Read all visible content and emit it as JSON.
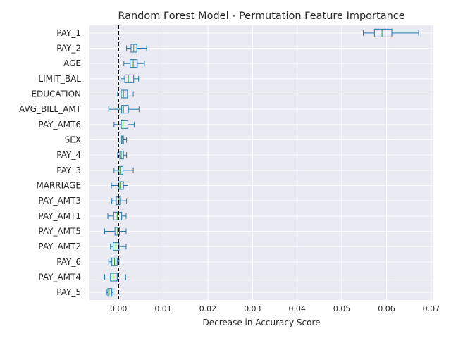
{
  "chart_data": {
    "type": "boxplot",
    "orientation": "horizontal",
    "title": "Random Forest Model - Permutation Feature Importance",
    "xlabel": "Decrease in Accuracy Score",
    "ylabel": "",
    "xlim": [
      -0.0065,
      0.0705
    ],
    "xticks": [
      0.0,
      0.01,
      0.02,
      0.03,
      0.04,
      0.05,
      0.06,
      0.07
    ],
    "xtick_labels": [
      "0.00",
      "0.01",
      "0.02",
      "0.03",
      "0.04",
      "0.05",
      "0.06",
      "0.07"
    ],
    "reference_line": {
      "x": 0.0,
      "style": "dashed",
      "color": "#000000"
    },
    "grid": true,
    "background": "#eaeaf2",
    "box_color": "#1f77b4",
    "median_color": "#2ca02c",
    "features": [
      {
        "name": "PAY_1",
        "whislo": 0.0548,
        "q1": 0.0573,
        "med": 0.059,
        "q3": 0.0612,
        "whishi": 0.0672
      },
      {
        "name": "PAY_2",
        "whislo": 0.0018,
        "q1": 0.0028,
        "med": 0.0034,
        "q3": 0.0041,
        "whishi": 0.0063
      },
      {
        "name": "AGE",
        "whislo": 0.0012,
        "q1": 0.0026,
        "med": 0.0033,
        "q3": 0.0042,
        "whishi": 0.0058
      },
      {
        "name": "LIMIT_BAL",
        "whislo": 0.0005,
        "q1": 0.0014,
        "med": 0.0022,
        "q3": 0.0034,
        "whishi": 0.0045
      },
      {
        "name": "EDUCATION",
        "whislo": -0.0002,
        "q1": 0.0006,
        "med": 0.0011,
        "q3": 0.002,
        "whishi": 0.0033
      },
      {
        "name": "AVG_BILL_AMT",
        "whislo": -0.0022,
        "q1": 0.0007,
        "med": 0.0011,
        "q3": 0.0022,
        "whishi": 0.0046
      },
      {
        "name": "PAY_AMT6",
        "whislo": -0.001,
        "q1": 0.0006,
        "med": 0.001,
        "q3": 0.0021,
        "whishi": 0.0035
      },
      {
        "name": "SEX",
        "whislo": 0.0005,
        "q1": 0.0007,
        "med": 0.0008,
        "q3": 0.0011,
        "whishi": 0.0018
      },
      {
        "name": "PAY_4",
        "whislo": -0.0002,
        "q1": 0.0003,
        "med": 0.0006,
        "q3": 0.0011,
        "whishi": 0.0018
      },
      {
        "name": "PAY_3",
        "whislo": -0.001,
        "q1": 0.0001,
        "med": 0.0004,
        "q3": 0.001,
        "whishi": 0.0033
      },
      {
        "name": "MARRIAGE",
        "whislo": -0.0016,
        "q1": 0.0001,
        "med": 0.0004,
        "q3": 0.0011,
        "whishi": 0.0021
      },
      {
        "name": "PAY_AMT3",
        "whislo": -0.0015,
        "q1": -0.0005,
        "med": 0.0,
        "q3": 0.0003,
        "whishi": 0.0018
      },
      {
        "name": "PAY_AMT1",
        "whislo": -0.0024,
        "q1": -0.0011,
        "med": -0.0003,
        "q3": 0.0007,
        "whishi": 0.0017
      },
      {
        "name": "PAY_AMT5",
        "whislo": -0.0031,
        "q1": -0.0008,
        "med": -0.0002,
        "q3": 0.0002,
        "whishi": 0.0017
      },
      {
        "name": "PAY_AMT2",
        "whislo": -0.0018,
        "q1": -0.0012,
        "med": -0.0006,
        "q3": 0.0001,
        "whishi": 0.0017
      },
      {
        "name": "PAY_6",
        "whislo": -0.0022,
        "q1": -0.0015,
        "med": -0.0009,
        "q3": -0.0003,
        "whishi": 0.0001
      },
      {
        "name": "PAY_AMT4",
        "whislo": -0.0031,
        "q1": -0.0018,
        "med": -0.0012,
        "q3": -0.0003,
        "whishi": 0.0016
      },
      {
        "name": "PAY_5",
        "whislo": -0.0027,
        "q1": -0.0024,
        "med": -0.0021,
        "q3": -0.0015,
        "whishi": -0.0012
      }
    ]
  }
}
